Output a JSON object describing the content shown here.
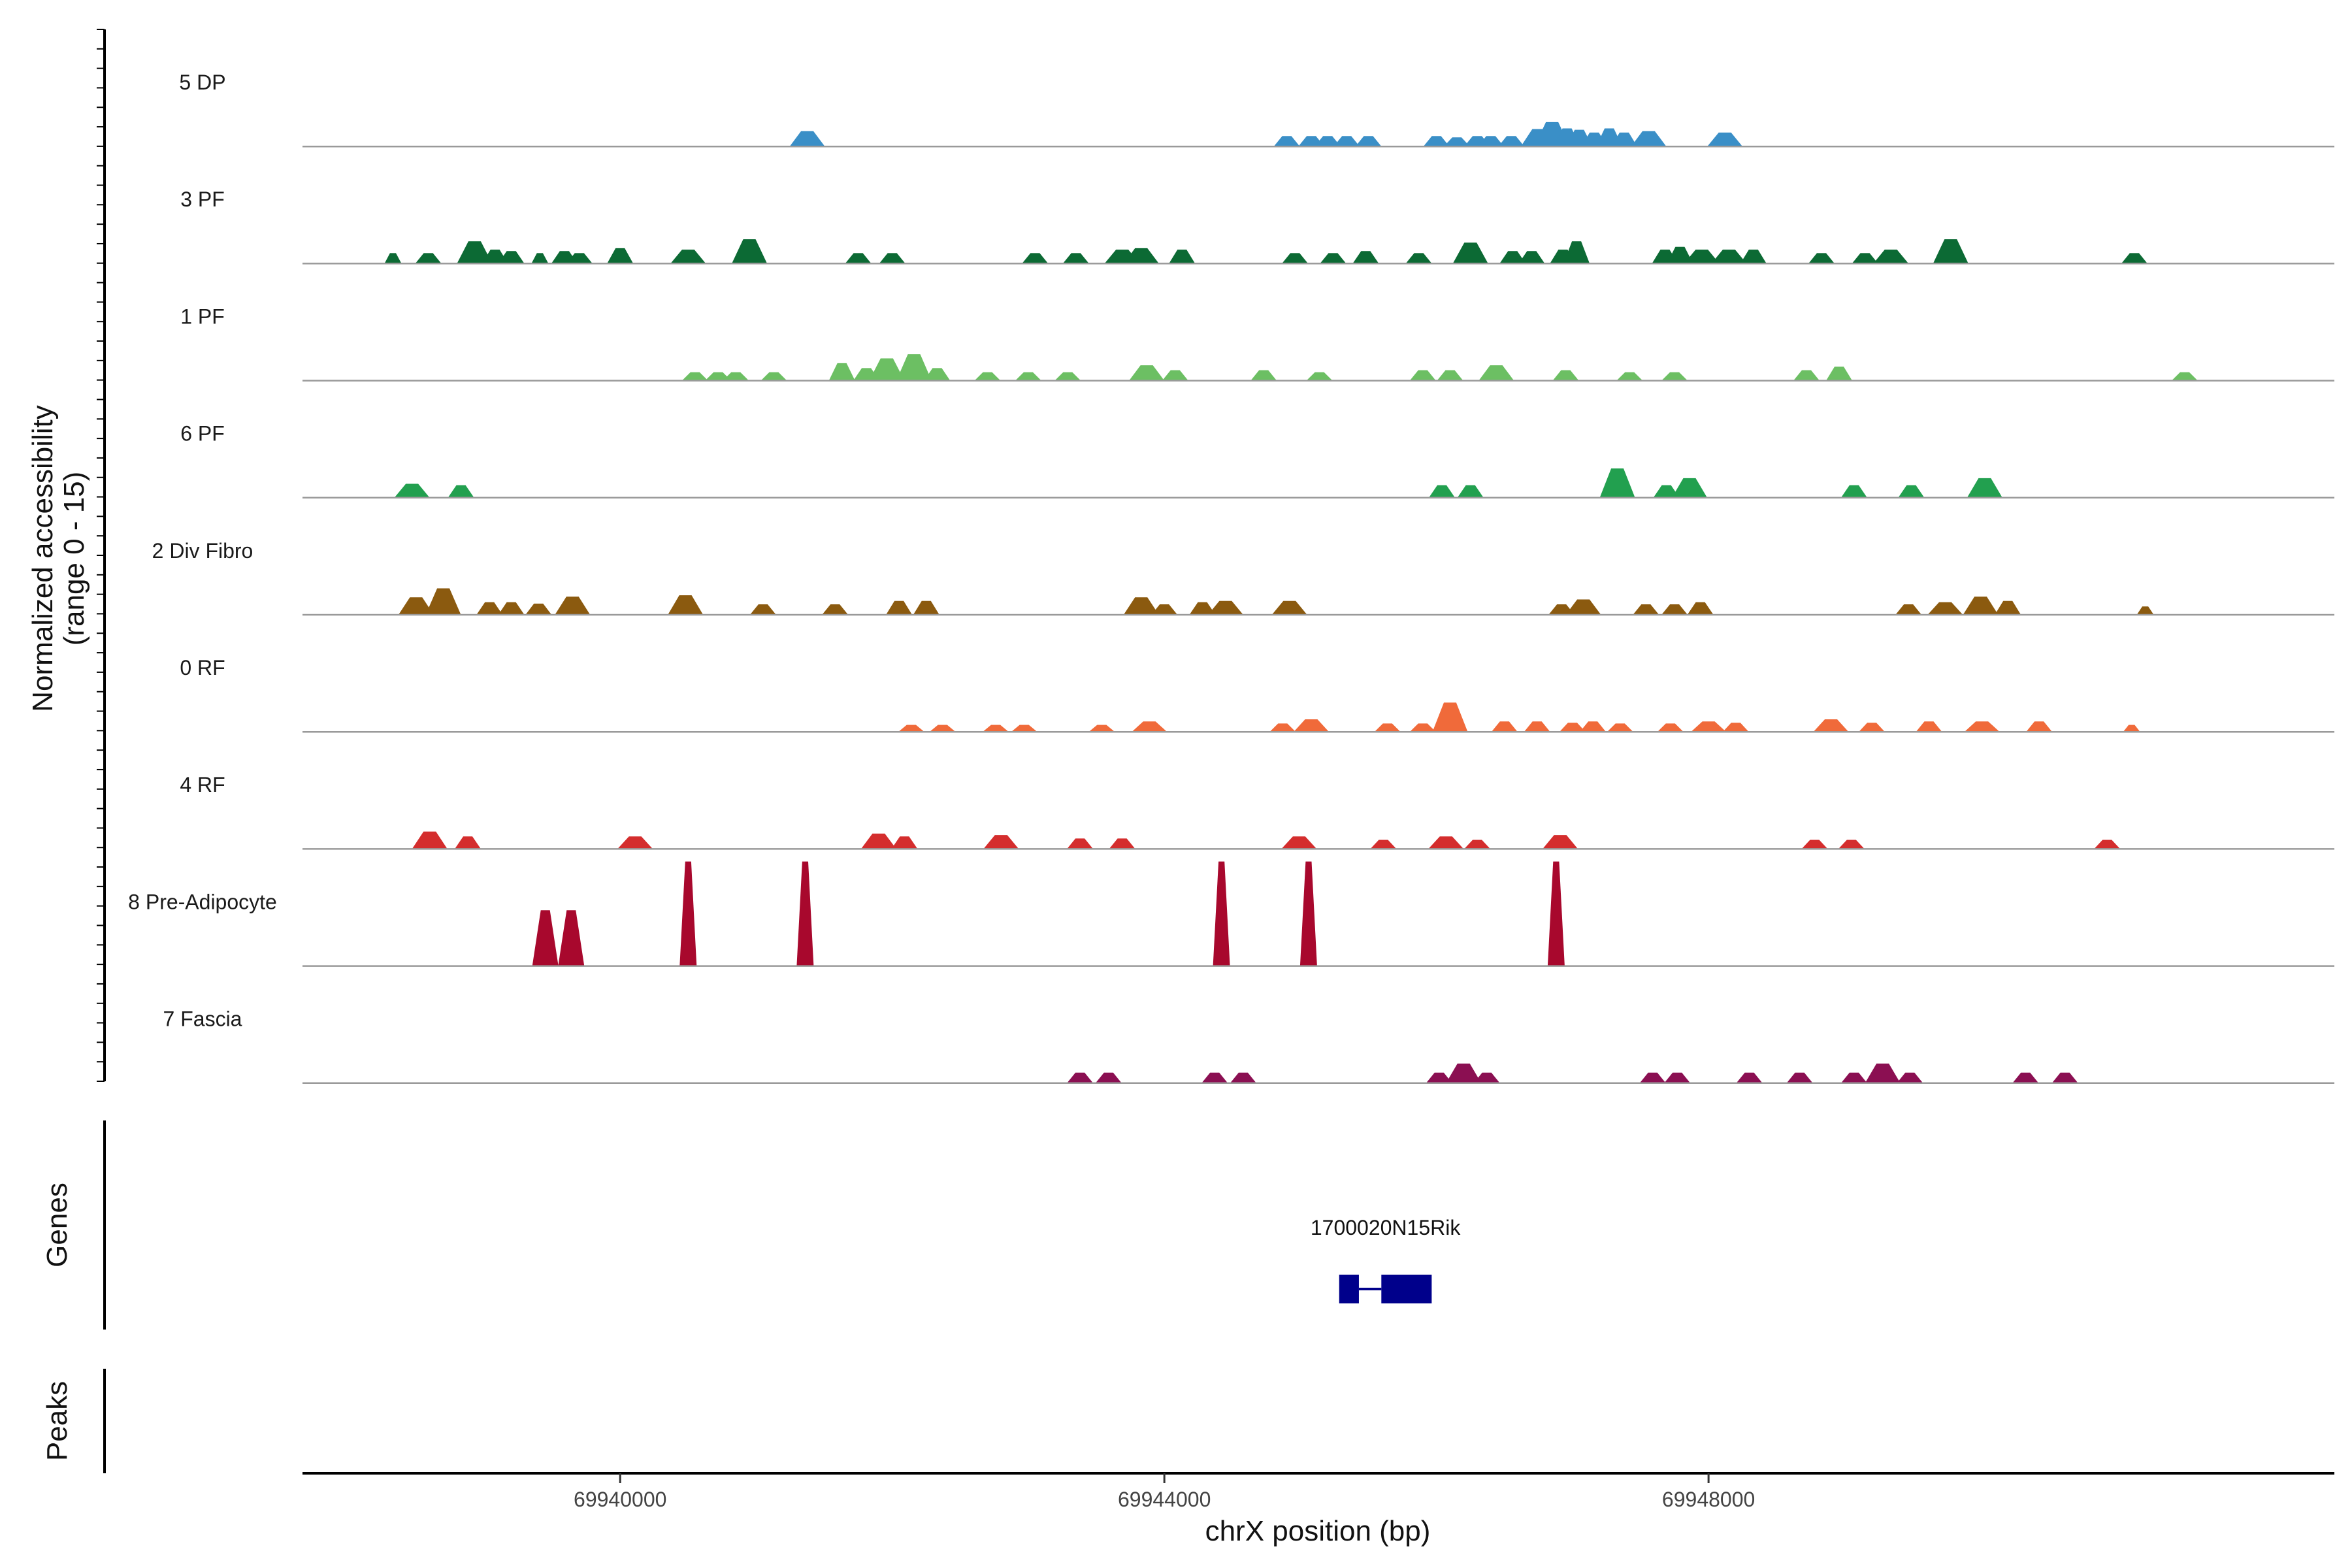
{
  "chart_data": {
    "type": "area",
    "title": "",
    "xlabel": "chrX position (bp)",
    "ylabel_line1": "Normalized accessibility",
    "ylabel_line2": "(range 0 - 15)",
    "ylim": [
      0,
      15
    ],
    "xlim": [
      69937665,
      69952600
    ],
    "x_ticks": [
      69940000,
      69944000,
      69948000
    ],
    "x_tick_labels": [
      "69940000",
      "69944000",
      "69948000"
    ],
    "genes_label": "Genes",
    "peaks_label": "Peaks",
    "genes": [
      {
        "name": "1700020N15Rik",
        "exons": [
          [
            69945285,
            69945430
          ],
          [
            69945595,
            69945965
          ]
        ],
        "intron": [
          69945430,
          69945595
        ]
      }
    ],
    "tracks": [
      {
        "name": "5 DP",
        "color": "#3a8fc7",
        "peaks": [
          [
            69941375,
            3,
            2.2
          ],
          [
            69944900,
            2,
            1.5
          ],
          [
            69945080,
            2,
            1.5
          ],
          [
            69945200,
            2,
            1.5
          ],
          [
            69945340,
            2,
            1.5
          ],
          [
            69945500,
            2,
            1.5
          ],
          [
            69946000,
            2,
            1.5
          ],
          [
            69946150,
            2,
            1.3
          ],
          [
            69946300,
            2,
            1.5
          ],
          [
            69946400,
            2,
            1.5
          ],
          [
            69946550,
            2,
            1.5
          ],
          [
            69946750,
            3,
            2.5
          ],
          [
            69946850,
            3,
            3.5
          ],
          [
            69946960,
            2,
            2.6
          ],
          [
            69947050,
            2,
            2.4
          ],
          [
            69947160,
            2,
            2.0
          ],
          [
            69947270,
            2,
            2.6
          ],
          [
            69947380,
            2,
            2.0
          ],
          [
            69947560,
            3,
            2.2
          ],
          [
            69948120,
            3,
            2.0
          ]
        ]
      },
      {
        "name": "3 PF",
        "color": "#0c6a34",
        "peaks": [
          [
            69938330,
            1,
            1.5
          ],
          [
            69938590,
            2,
            1.5
          ],
          [
            69938930,
            3,
            3.2
          ],
          [
            69939080,
            2,
            2.0
          ],
          [
            69939200,
            2,
            1.8
          ],
          [
            69939410,
            1,
            1.5
          ],
          [
            69939590,
            2,
            1.8
          ],
          [
            69939700,
            2,
            1.5
          ],
          [
            69940000,
            2,
            2.2
          ],
          [
            69940500,
            3,
            2.0
          ],
          [
            69940950,
            3,
            3.5
          ],
          [
            69941750,
            2,
            1.5
          ],
          [
            69942000,
            2,
            1.5
          ],
          [
            69943050,
            2,
            1.5
          ],
          [
            69943350,
            2,
            1.5
          ],
          [
            69943690,
            3,
            2.0
          ],
          [
            69943830,
            3,
            2.2
          ],
          [
            69944130,
            2,
            2.0
          ],
          [
            69944960,
            2,
            1.5
          ],
          [
            69945240,
            2,
            1.5
          ],
          [
            69945480,
            2,
            1.8
          ],
          [
            69945870,
            2,
            1.5
          ],
          [
            69946250,
            3,
            3.0
          ],
          [
            69946560,
            2,
            1.8
          ],
          [
            69946700,
            2,
            1.8
          ],
          [
            69946930,
            2,
            2.0
          ],
          [
            69947030,
            2,
            3.2
          ],
          [
            69947680,
            2,
            2.0
          ],
          [
            69947790,
            2,
            2.4
          ],
          [
            69947950,
            3,
            2.0
          ],
          [
            69948150,
            3,
            2.0
          ],
          [
            69948330,
            2,
            2.0
          ],
          [
            69948830,
            2,
            1.5
          ],
          [
            69949150,
            2,
            1.5
          ],
          [
            69949340,
            3,
            2.0
          ],
          [
            69949780,
            3,
            3.5
          ],
          [
            69951130,
            2,
            1.5
          ]
        ]
      },
      {
        "name": "1 PF",
        "color": "#6cbf63",
        "peaks": [
          [
            69940550,
            2,
            1.2
          ],
          [
            69940720,
            2,
            1.2
          ],
          [
            69940850,
            2,
            1.2
          ],
          [
            69941130,
            2,
            1.2
          ],
          [
            69941630,
            2,
            2.5
          ],
          [
            69941810,
            2,
            1.8
          ],
          [
            69941960,
            3,
            3.2
          ],
          [
            69942160,
            3,
            3.8
          ],
          [
            69942330,
            2,
            1.8
          ],
          [
            69942700,
            2,
            1.2
          ],
          [
            69943000,
            2,
            1.2
          ],
          [
            69943290,
            2,
            1.2
          ],
          [
            69943870,
            3,
            2.2
          ],
          [
            69944080,
            2,
            1.5
          ],
          [
            69944730,
            2,
            1.5
          ],
          [
            69945140,
            2,
            1.2
          ],
          [
            69945900,
            2,
            1.5
          ],
          [
            69946100,
            2,
            1.5
          ],
          [
            69946440,
            3,
            2.2
          ],
          [
            69946950,
            2,
            1.5
          ],
          [
            69947420,
            2,
            1.2
          ],
          [
            69947750,
            2,
            1.2
          ],
          [
            69948720,
            2,
            1.5
          ],
          [
            69948960,
            2,
            2.0
          ],
          [
            69951500,
            2,
            1.2
          ]
        ]
      },
      {
        "name": "6 PF",
        "color": "#22a04f",
        "peaks": [
          [
            69938470,
            3,
            2.0
          ],
          [
            69938830,
            2,
            1.8
          ],
          [
            69946040,
            2,
            1.8
          ],
          [
            69946250,
            2,
            1.8
          ],
          [
            69947330,
            3,
            4.2
          ],
          [
            69947690,
            2,
            1.8
          ],
          [
            69947860,
            3,
            2.8
          ],
          [
            69949070,
            2,
            1.8
          ],
          [
            69949490,
            2,
            1.8
          ],
          [
            69950030,
            3,
            2.8
          ]
        ]
      },
      {
        "name": "2 Div Fibro",
        "color": "#8b5a0f",
        "peaks": [
          [
            69938500,
            3,
            2.5
          ],
          [
            69938700,
            3,
            3.8
          ],
          [
            69939040,
            2,
            1.8
          ],
          [
            69939200,
            2,
            1.8
          ],
          [
            69939400,
            2,
            1.6
          ],
          [
            69939650,
            3,
            2.6
          ],
          [
            69940480,
            3,
            2.8
          ],
          [
            69941050,
            2,
            1.5
          ],
          [
            69941580,
            2,
            1.5
          ],
          [
            69942050,
            2,
            2.0
          ],
          [
            69942250,
            2,
            2.0
          ],
          [
            69943830,
            3,
            2.5
          ],
          [
            69944000,
            2,
            1.5
          ],
          [
            69944280,
            2,
            1.8
          ],
          [
            69944450,
            3,
            2.0
          ],
          [
            69944920,
            3,
            2.0
          ],
          [
            69946920,
            2,
            1.5
          ],
          [
            69947080,
            3,
            2.2
          ],
          [
            69947540,
            2,
            1.5
          ],
          [
            69947750,
            2,
            1.5
          ],
          [
            69947940,
            2,
            1.8
          ],
          [
            69949470,
            2,
            1.5
          ],
          [
            69949740,
            3,
            1.8
          ],
          [
            69950000,
            3,
            2.6
          ],
          [
            69950200,
            2,
            2.0
          ],
          [
            69951210,
            1,
            1.2
          ]
        ]
      },
      {
        "name": "0 RF",
        "color": "#f06a3a",
        "peaks": [
          [
            69942140,
            2,
            1.0
          ],
          [
            69942370,
            2,
            1.0
          ],
          [
            69942760,
            2,
            1.0
          ],
          [
            69942970,
            2,
            1.0
          ],
          [
            69943540,
            2,
            1.0
          ],
          [
            69943890,
            3,
            1.5
          ],
          [
            69944870,
            2,
            1.2
          ],
          [
            69945080,
            3,
            1.8
          ],
          [
            69945640,
            2,
            1.2
          ],
          [
            69945900,
            2,
            1.2
          ],
          [
            69946100,
            3,
            4.2
          ],
          [
            69946500,
            2,
            1.5
          ],
          [
            69946740,
            2,
            1.5
          ],
          [
            69947000,
            2,
            1.3
          ],
          [
            69947150,
            2,
            1.5
          ],
          [
            69947350,
            2,
            1.2
          ],
          [
            69947720,
            2,
            1.2
          ],
          [
            69948000,
            3,
            1.5
          ],
          [
            69948200,
            2,
            1.3
          ],
          [
            69948900,
            3,
            1.8
          ],
          [
            69949200,
            2,
            1.3
          ],
          [
            69949620,
            2,
            1.5
          ],
          [
            69950010,
            3,
            1.5
          ],
          [
            69950430,
            2,
            1.5
          ],
          [
            69951110,
            1,
            1.0
          ]
        ]
      },
      {
        "name": "4 RF",
        "color": "#d42d2d",
        "peaks": [
          [
            69938600,
            3,
            2.5
          ],
          [
            69938880,
            2,
            1.8
          ],
          [
            69940110,
            3,
            1.8
          ],
          [
            69941900,
            3,
            2.2
          ],
          [
            69942090,
            2,
            1.8
          ],
          [
            69942800,
            3,
            2.0
          ],
          [
            69943380,
            2,
            1.5
          ],
          [
            69943690,
            2,
            1.5
          ],
          [
            69944990,
            3,
            1.8
          ],
          [
            69945610,
            2,
            1.3
          ],
          [
            69946070,
            3,
            1.8
          ],
          [
            69946300,
            2,
            1.3
          ],
          [
            69946910,
            3,
            2.0
          ],
          [
            69948780,
            2,
            1.3
          ],
          [
            69949050,
            2,
            1.3
          ],
          [
            69950930,
            2,
            1.3
          ]
        ]
      },
      {
        "name": "8 Pre-Adipocyte",
        "color": "#a8082d",
        "peaks": [
          [
            69939450,
            2,
            8
          ],
          [
            69939640,
            2,
            8
          ],
          [
            69940500,
            1,
            15
          ],
          [
            69941360,
            1,
            15
          ],
          [
            69944420,
            1,
            15
          ],
          [
            69945060,
            1,
            15
          ],
          [
            69946880,
            1,
            15
          ]
        ]
      },
      {
        "name": "7 Fascia",
        "color": "#8b0f52",
        "peaks": [
          [
            69943380,
            2,
            1.5
          ],
          [
            69943590,
            2,
            1.5
          ],
          [
            69944370,
            2,
            1.5
          ],
          [
            69944580,
            2,
            1.5
          ],
          [
            69946020,
            2,
            1.5
          ],
          [
            69946200,
            3,
            2.8
          ],
          [
            69946370,
            2,
            1.5
          ],
          [
            69947590,
            2,
            1.5
          ],
          [
            69947770,
            2,
            1.5
          ],
          [
            69948300,
            2,
            1.5
          ],
          [
            69948670,
            2,
            1.5
          ],
          [
            69949070,
            2,
            1.5
          ],
          [
            69949280,
            3,
            2.8
          ],
          [
            69949480,
            2,
            1.5
          ],
          [
            69950330,
            2,
            1.5
          ],
          [
            69950620,
            2,
            1.5
          ]
        ]
      }
    ]
  }
}
